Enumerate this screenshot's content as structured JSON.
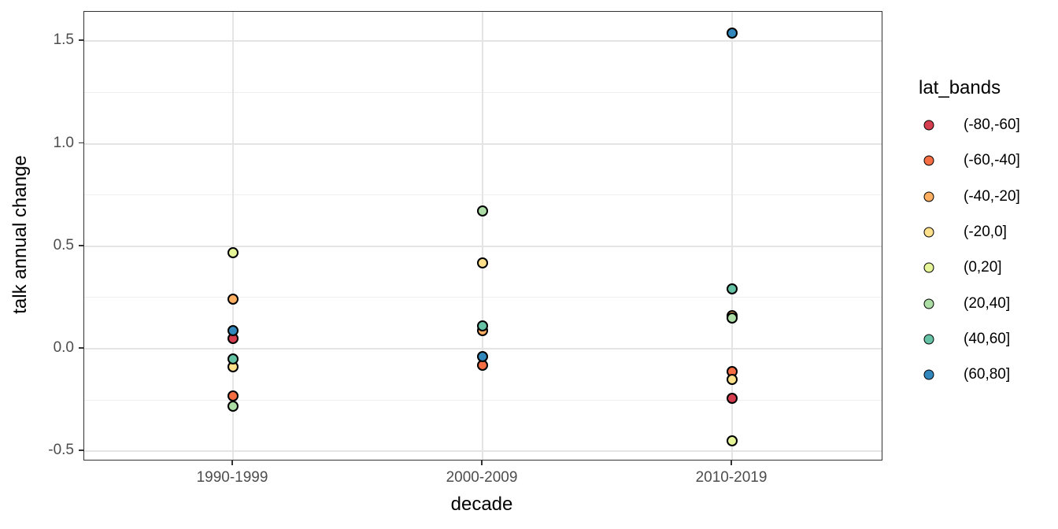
{
  "chart_data": {
    "type": "scatter",
    "title": "",
    "xlabel": "decade",
    "ylabel": "talk annual change",
    "categories": [
      "1990-1999",
      "2000-2009",
      "2010-2019"
    ],
    "y_ticks": [
      -0.5,
      0.0,
      0.5,
      1.0,
      1.5
    ],
    "y_tick_labels": [
      "-0.5",
      "0.0",
      "0.5",
      "1.0",
      "1.5"
    ],
    "y_minor_ticks": [
      -0.25,
      0.25,
      0.75,
      1.25
    ],
    "ylim": [
      -0.55,
      1.64
    ],
    "grid": true,
    "legend_title": "lat_bands",
    "legend_position": "right",
    "panel_border_color": "#333333",
    "major_grid_color": "#e4e4e4",
    "minor_grid_color": "#efefef",
    "tick_label_color": "#4d4d4d",
    "series": [
      {
        "name": "(-80,-60]",
        "color": "#d53e4f",
        "values": [
          0.05,
          null,
          -0.24
        ]
      },
      {
        "name": "(-60,-40]",
        "color": "#f46d43",
        "values": [
          -0.23,
          -0.08,
          -0.11
        ]
      },
      {
        "name": "(-40,-20]",
        "color": "#fdae61",
        "values": [
          0.24,
          0.09,
          0.16
        ]
      },
      {
        "name": "(-20,0]",
        "color": "#fee08b",
        "values": [
          -0.09,
          0.42,
          -0.15
        ]
      },
      {
        "name": "(0,20]",
        "color": "#e6f598",
        "values": [
          0.47,
          null,
          -0.45
        ]
      },
      {
        "name": "(20,40]",
        "color": "#abdda4",
        "values": [
          -0.28,
          0.67,
          0.15
        ]
      },
      {
        "name": "(40,60]",
        "color": "#66c2a5",
        "values": [
          -0.05,
          0.11,
          0.29
        ]
      },
      {
        "name": "(60,80]",
        "color": "#3288bd",
        "values": [
          0.09,
          -0.04,
          1.54
        ]
      }
    ]
  }
}
